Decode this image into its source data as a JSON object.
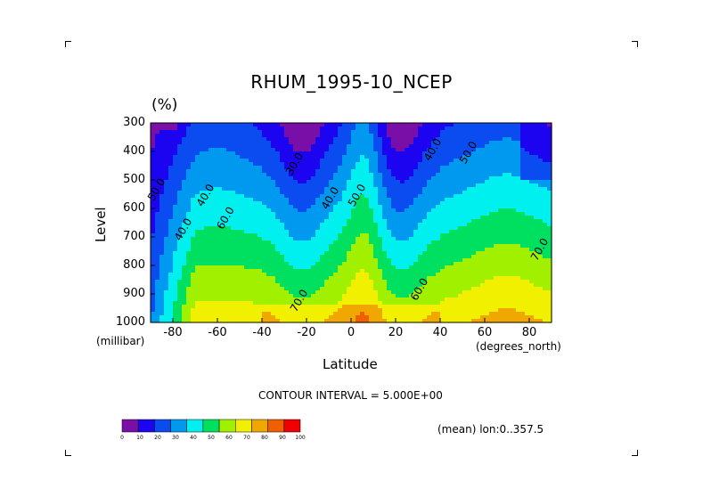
{
  "chart_data": {
    "type": "heatmap",
    "title": "RHUM_1995-10_NCEP",
    "units": "(%)",
    "ylabel": "Level",
    "ylabel_unit": "(millibar)",
    "xlabel": "Latitude",
    "xlabel_unit": "(degrees_north)",
    "x_ticks": [
      "-80",
      "-60",
      "-40",
      "-20",
      "0",
      "20",
      "40",
      "60",
      "80"
    ],
    "x_tick_values": [
      -80,
      -60,
      -40,
      -20,
      0,
      20,
      40,
      60,
      80
    ],
    "y_ticks": [
      "300",
      "400",
      "500",
      "600",
      "700",
      "800",
      "900",
      "1000"
    ],
    "y_tick_values": [
      300,
      400,
      500,
      600,
      700,
      800,
      900,
      1000
    ],
    "xlim": [
      -90,
      90
    ],
    "ylim": [
      1000,
      300
    ],
    "contour_labels": [
      {
        "text": "30.0",
        "lat": -24,
        "lev": 450
      },
      {
        "text": "40.0",
        "lat": -8,
        "lev": 570
      },
      {
        "text": "50.0",
        "lat": 4,
        "lev": 560
      },
      {
        "text": "40.0",
        "lat": 38,
        "lev": 400
      },
      {
        "text": "50.0",
        "lat": 54,
        "lev": 410
      },
      {
        "text": "40.0",
        "lat": -64,
        "lev": 560
      },
      {
        "text": "40.0",
        "lat": -74,
        "lev": 680
      },
      {
        "text": "60.0",
        "lat": -55,
        "lev": 640
      },
      {
        "text": "60.0",
        "lat": 32,
        "lev": 890
      },
      {
        "text": "70.0",
        "lat": -22,
        "lev": 930
      },
      {
        "text": "70.0",
        "lat": 86,
        "lev": 750
      },
      {
        "text": "50.0",
        "lat": -86,
        "lev": 540
      }
    ],
    "colorbar": {
      "levels": [
        "0",
        "10",
        "20",
        "30",
        "40",
        "50",
        "60",
        "70",
        "80",
        "90",
        "100"
      ],
      "colors": [
        "#7a0fa8",
        "#1d04f0",
        "#0a4cf0",
        "#0099f0",
        "#00f0f0",
        "#00e060",
        "#a0f000",
        "#f0f000",
        "#f0a800",
        "#f06000",
        "#f00000"
      ]
    },
    "contour_interval": "CONTOUR INTERVAL = 5.000E+00",
    "mean_note": "(mean) lon:0..357.5"
  }
}
